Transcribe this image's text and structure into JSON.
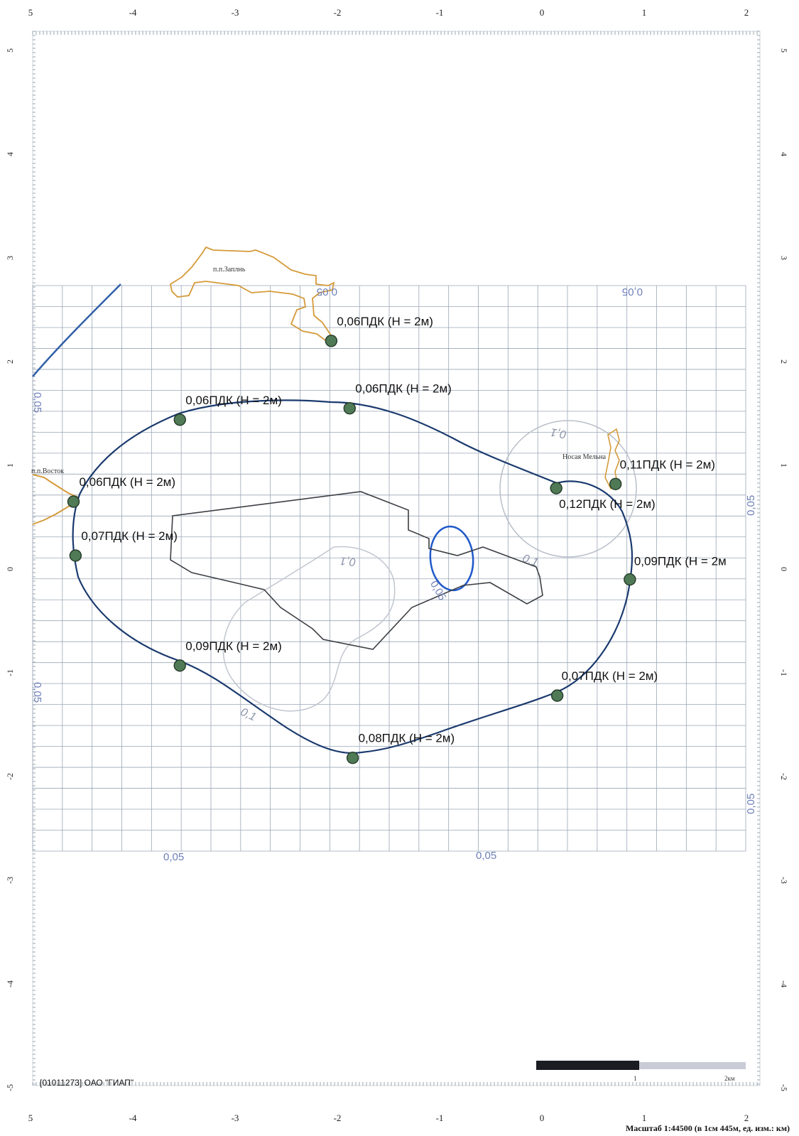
{
  "axes": {
    "x_top": [
      "5",
      "-4",
      "-3",
      "-2",
      "-1",
      "0",
      "1",
      "2"
    ],
    "x_bottom": [
      "5",
      "-4",
      "-3",
      "-2",
      "-1",
      "0",
      "1",
      "2"
    ],
    "y_left": [
      "5",
      "4",
      "3",
      "2",
      "1",
      "0",
      "-1",
      "-2",
      "-3",
      "-4",
      "-5"
    ],
    "y_right": [
      "5",
      "4",
      "3",
      "2",
      "1",
      "0",
      "-1",
      "-2",
      "-3",
      "-4",
      "-5"
    ]
  },
  "settlements": {
    "zaplyn": "п.п.Заплнь",
    "vostok": "п.п.Восток",
    "nosaya": "Носая Мельна"
  },
  "isolines": {
    "top_left": "0,05",
    "top_right": "0,05",
    "left_vertical": "0,05",
    "left_lower": "0,05",
    "right_upper": "0,05",
    "right_lower": "0,05",
    "bottom_left": "0,05",
    "bottom_right": "0,05",
    "inner_top": "0,1",
    "inner_center": "0,1",
    "inner_right": "0,1",
    "inner_lower": "0,1",
    "blue_small": "0,05"
  },
  "points": [
    {
      "label": "0,06ПДК (Н = 2м)",
      "u": -2.06,
      "v": 2.2
    },
    {
      "label": "0,06ПДК (Н = 2м)",
      "u": -1.88,
      "v": 1.55
    },
    {
      "label": "0,06ПДК (Н = 2м)",
      "u": -3.54,
      "v": 1.44
    },
    {
      "label": "0,06ПДК (Н = 2м)",
      "u": -4.58,
      "v": 0.65
    },
    {
      "label": "0,07ПДК (Н = 2м)",
      "u": -4.56,
      "v": 0.13
    },
    {
      "label": "0,11ПДК (Н = 2м)",
      "u": 0.72,
      "v": 0.82
    },
    {
      "label": "0,12ПДК (Н = 2м)",
      "u": 0.14,
      "v": 0.78
    },
    {
      "label": "0,09ПДК (Н = 2м",
      "u": 0.86,
      "v": -0.1
    },
    {
      "label": "0,09ПДК (Н = 2м)",
      "u": -3.54,
      "v": -0.93
    },
    {
      "label": "0,07ПДК (Н = 2м)",
      "u": 0.15,
      "v": -1.22
    },
    {
      "label": "0,08ПДК (Н = 2м)",
      "u": -1.85,
      "v": -1.82
    }
  ],
  "footer": {
    "org": "[01011273] ОАО \"ГИАП\"",
    "scale_caption": "Масштаб 1:44500 (в 1см 445м, ед. изм.: км)",
    "scale_tick_1": "1",
    "scale_tick_2": "2км"
  }
}
